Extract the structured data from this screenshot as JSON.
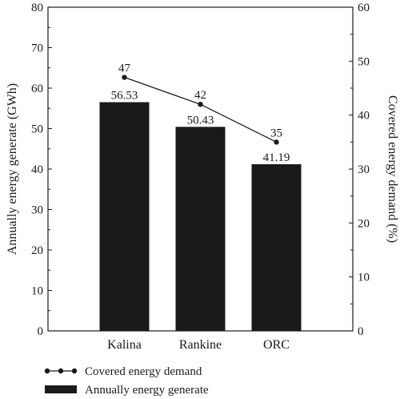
{
  "chart_data": {
    "type": "bar",
    "categories": [
      "Kalina",
      "Rankine",
      "ORC"
    ],
    "series": [
      {
        "name": "Annually energy generate",
        "type": "bar",
        "axis": "left",
        "values": [
          56.53,
          50.43,
          41.19
        ],
        "value_labels": [
          "56.53",
          "50.43",
          "41.19"
        ],
        "color": "#1a1a1a"
      },
      {
        "name": "Covered energy demand",
        "type": "line",
        "axis": "right",
        "values": [
          47,
          42,
          35
        ],
        "value_labels": [
          "47",
          "42",
          "35"
        ],
        "color": "#1a1a1a"
      }
    ],
    "ylabel": "Annually energy generate (GWh)",
    "ylabel_right": "Covered energy demand (%)",
    "ylim": [
      0,
      80
    ],
    "ylim_right": [
      0,
      60
    ],
    "yticks": [
      "0",
      "10",
      "20",
      "30",
      "40",
      "50",
      "60",
      "70",
      "80"
    ],
    "yticks_right": [
      "0",
      "10",
      "20",
      "30",
      "40",
      "50",
      "60"
    ],
    "grid": false,
    "legend_position": "bottom-left"
  }
}
